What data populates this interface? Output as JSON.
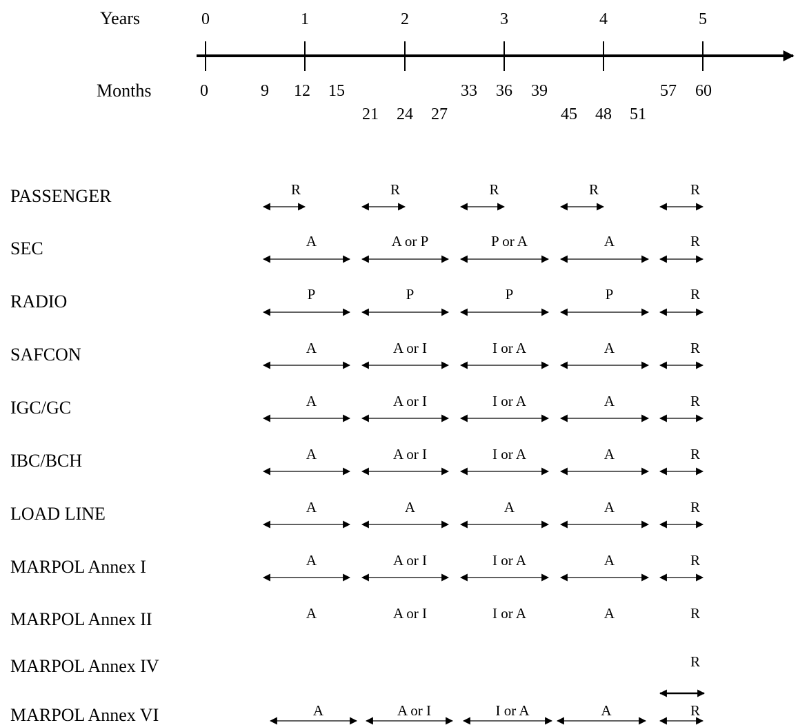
{
  "timeline": {
    "years_label": "Years",
    "months_label": "Months",
    "years": [
      "0",
      "1",
      "2",
      "3",
      "4",
      "5"
    ],
    "months_upper": [
      "0",
      "9",
      "12",
      "15",
      "33",
      "36",
      "39",
      "57",
      "60"
    ],
    "months_lower": [
      "21",
      "24",
      "27",
      "45",
      "48",
      "51"
    ]
  },
  "legend_codes": {
    "A": "A",
    "P": "P",
    "I": "I",
    "R": "R"
  },
  "rows": [
    {
      "name": "PASSENGER",
      "segments": [
        "R",
        "R",
        "R",
        "R",
        "R"
      ]
    },
    {
      "name": "SEC",
      "segments": [
        "A",
        "A or P",
        "P or A",
        "A",
        "R"
      ]
    },
    {
      "name": "RADIO",
      "segments": [
        "P",
        "P",
        "P",
        "P",
        "R"
      ]
    },
    {
      "name": "SAFCON",
      "segments": [
        "A",
        "A or I",
        "I or A",
        "A",
        "R"
      ]
    },
    {
      "name": "IGC/GC",
      "segments": [
        "A",
        "A or I",
        "I or A",
        "A",
        "R"
      ]
    },
    {
      "name": "IBC/BCH",
      "segments": [
        "A",
        "A or I",
        "I or A",
        "A",
        "R"
      ]
    },
    {
      "name": "LOAD LINE",
      "segments": [
        "A",
        "A",
        "A",
        "A",
        "R"
      ]
    },
    {
      "name": "MARPOL Annex I",
      "segments": [
        "A",
        "A or I",
        "I or A",
        "A",
        "R"
      ]
    },
    {
      "name": "MARPOL Annex II",
      "segments": [
        "A",
        "A or I",
        "I or A",
        "A",
        "R"
      ]
    },
    {
      "name": "MARPOL Annex IV",
      "segments": [
        "",
        "",
        "",
        "",
        "R"
      ]
    },
    {
      "name": "MARPOL Annex VI",
      "segments": [
        "A",
        "A or I",
        "I or A",
        "A",
        "R"
      ]
    }
  ]
}
